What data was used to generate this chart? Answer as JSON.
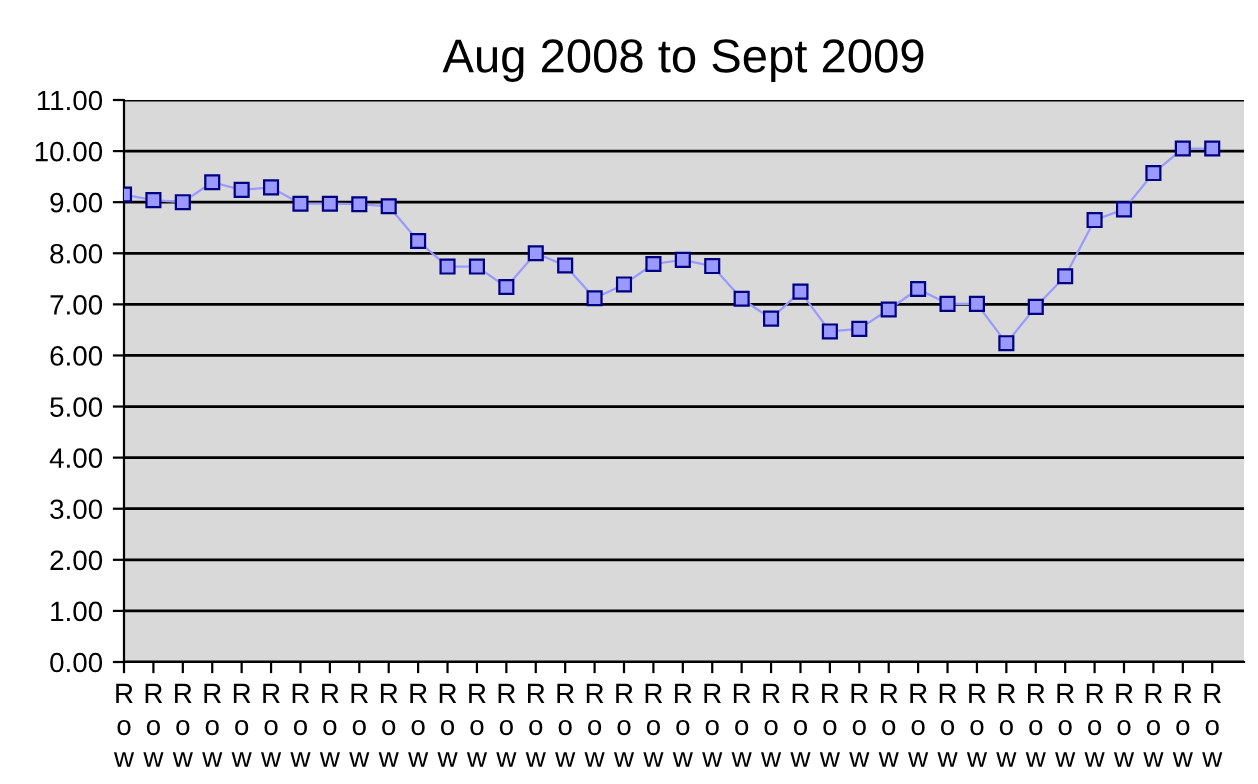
{
  "chart_data": {
    "type": "line",
    "title": "Aug 2008 to Sept 2009",
    "categories": [
      "Row",
      "Row",
      "Row",
      "Row",
      "Row",
      "Row",
      "Row",
      "Row",
      "Row",
      "Row",
      "Row",
      "Row",
      "Row",
      "Row",
      "Row",
      "Row",
      "Row",
      "Row",
      "Row",
      "Row",
      "Row",
      "Row",
      "Row",
      "Row",
      "Row",
      "Row",
      "Row",
      "Row",
      "Row",
      "Row",
      "Row",
      "Row",
      "Row",
      "Row",
      "Row",
      "Row",
      "Row",
      "Row"
    ],
    "series": [
      {
        "color": "#9999ff",
        "values": [
          9.15,
          9.04,
          9.0,
          9.39,
          9.24,
          9.29,
          8.97,
          8.97,
          8.96,
          8.92,
          8.24,
          7.74,
          7.74,
          7.34,
          8.0,
          7.76,
          7.12,
          7.39,
          7.79,
          7.87,
          7.75,
          7.11,
          6.72,
          7.25,
          6.47,
          6.52,
          6.9,
          7.3,
          7.01,
          7.01,
          6.24,
          6.95,
          7.55,
          8.65,
          8.86,
          9.57,
          10.05,
          10.05
        ]
      }
    ],
    "ylim": [
      0,
      11
    ],
    "yticks": [
      {
        "value": 0,
        "label": "0.00"
      },
      {
        "value": 1,
        "label": "1.00"
      },
      {
        "value": 2,
        "label": "2.00"
      },
      {
        "value": 3,
        "label": "3.00"
      },
      {
        "value": 4,
        "label": "4.00"
      },
      {
        "value": 5,
        "label": "5.00"
      },
      {
        "value": 6,
        "label": "6.00"
      },
      {
        "value": 7,
        "label": "7.00"
      },
      {
        "value": 8,
        "label": "8.00"
      },
      {
        "value": 9,
        "label": "9.00"
      },
      {
        "value": 10,
        "label": "10.00"
      },
      {
        "value": 11,
        "label": "11.00"
      }
    ],
    "grid": "y",
    "marker": "square",
    "line_style": "solid"
  }
}
